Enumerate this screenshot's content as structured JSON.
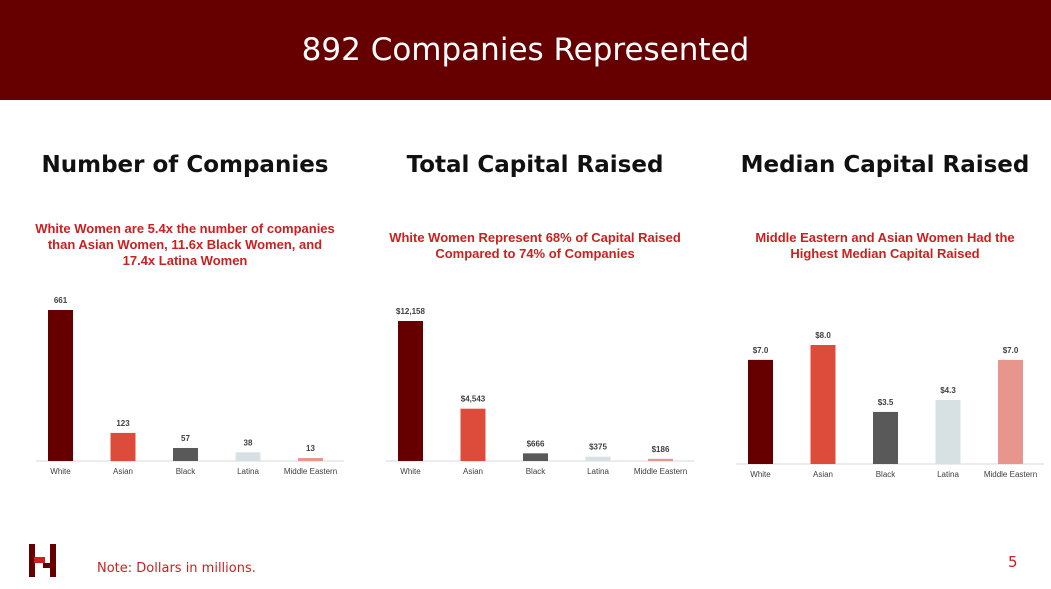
{
  "header": {
    "title": "892 Companies Represented"
  },
  "colors": {
    "banner": "#660000",
    "accent_text": "#cc1f1f",
    "series": [
      "#660000",
      "#dd4c3b",
      "#595959",
      "#d7e1e4",
      "#e8958e"
    ]
  },
  "panels": [
    {
      "title": "Number of Companies",
      "subtitle": "White Women are 5.4x the number of companies than Asian Women, 11.6x Black Women, and 17.4x Latina Women"
    },
    {
      "title": "Total Capital Raised",
      "subtitle": "White Women Represent 68% of Capital Raised Compared to 74% of Companies"
    },
    {
      "title": "Median Capital Raised",
      "subtitle": "Middle Eastern and Asian Women Had the Highest Median Capital Raised"
    }
  ],
  "chart_data": [
    {
      "type": "bar",
      "title": "Number of Companies",
      "categories": [
        "White",
        "Asian",
        "Black",
        "Latina",
        "Middle Eastern"
      ],
      "values": [
        661,
        123,
        57,
        38,
        13
      ],
      "labels": [
        "661",
        "123",
        "57",
        "38",
        "13"
      ],
      "ylim": [
        0,
        661
      ]
    },
    {
      "type": "bar",
      "title": "Total Capital Raised",
      "categories": [
        "White",
        "Asian",
        "Black",
        "Latina",
        "Middle Eastern"
      ],
      "values": [
        12158,
        4543,
        666,
        375,
        186
      ],
      "labels": [
        "$12,158",
        "$4,543",
        "$666",
        "$375",
        "$186"
      ],
      "ylim": [
        0,
        12158
      ]
    },
    {
      "type": "bar",
      "title": "Median Capital Raised",
      "categories": [
        "White",
        "Asian",
        "Black",
        "Latina",
        "Middle Eastern"
      ],
      "values": [
        7.0,
        8.0,
        3.5,
        4.3,
        7.0
      ],
      "labels": [
        "$7.0",
        "$8.0",
        "$3.5",
        "$4.3",
        "$7.0"
      ],
      "ylim": [
        0,
        8.0
      ]
    }
  ],
  "footer": {
    "note": "Note: Dollars in millions.",
    "page_number": "5"
  },
  "logo": {
    "icon": "h-logo-icon"
  }
}
